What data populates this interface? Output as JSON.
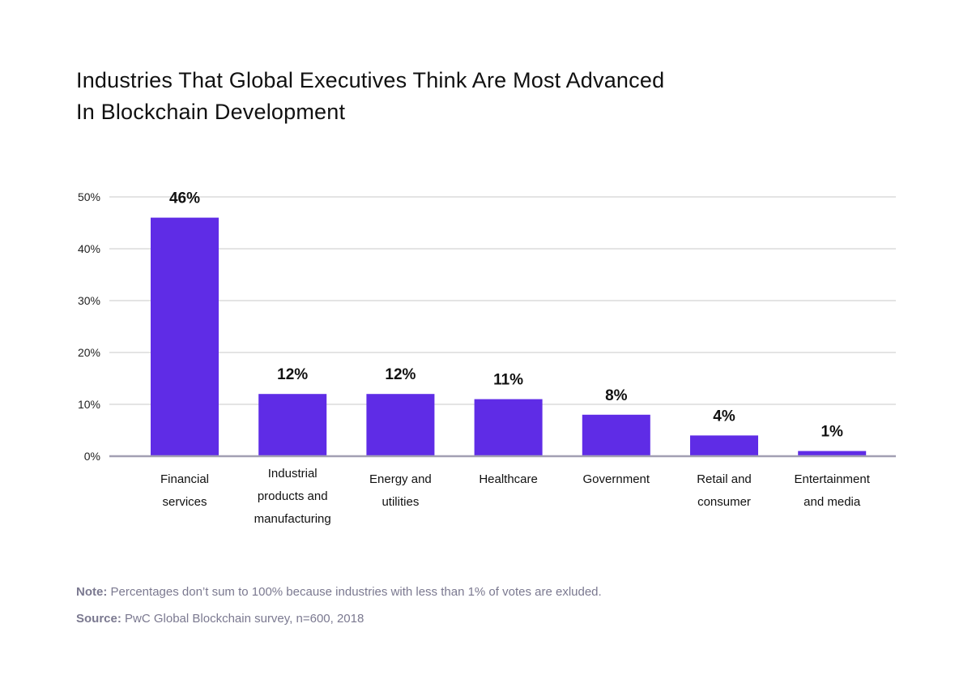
{
  "chart_data": {
    "type": "bar",
    "title": "Industries That Global Executives Think Are Most Advanced In Blockchain Development",
    "title_lines": [
      "Industries That Global Executives Think Are Most Advanced",
      "In Blockchain Development"
    ],
    "categories": [
      [
        "Financial",
        "services"
      ],
      [
        "Industrial",
        "products and",
        "manufacturing"
      ],
      [
        "Energy and",
        "utilities"
      ],
      [
        "Healthcare"
      ],
      [
        "Government"
      ],
      [
        "Retail and",
        "consumer"
      ],
      [
        "Entertainment",
        "and media"
      ]
    ],
    "values": [
      46,
      12,
      12,
      11,
      8,
      4,
      1
    ],
    "data_labels": [
      "46%",
      "12%",
      "12%",
      "11%",
      "8%",
      "4%",
      "1%"
    ],
    "yticks": [
      0,
      10,
      20,
      30,
      40,
      50
    ],
    "ytick_labels": [
      "0%",
      "10%",
      "20%",
      "30%",
      "40%",
      "50%"
    ],
    "ylim": [
      0,
      50
    ],
    "xlabel": "",
    "ylabel": "",
    "grid": true,
    "colors": {
      "bar": "#5f2ce6",
      "grid": "#dcdcdc",
      "baseline": "#a29fb3"
    }
  },
  "footer": {
    "note_label": "Note:",
    "note_text": " Percentages don’t sum to 100% because industries with less than 1% of votes are exluded.",
    "source_label": "Source:",
    "source_text": " PwC Global Blockchain survey, n=600, 2018"
  }
}
